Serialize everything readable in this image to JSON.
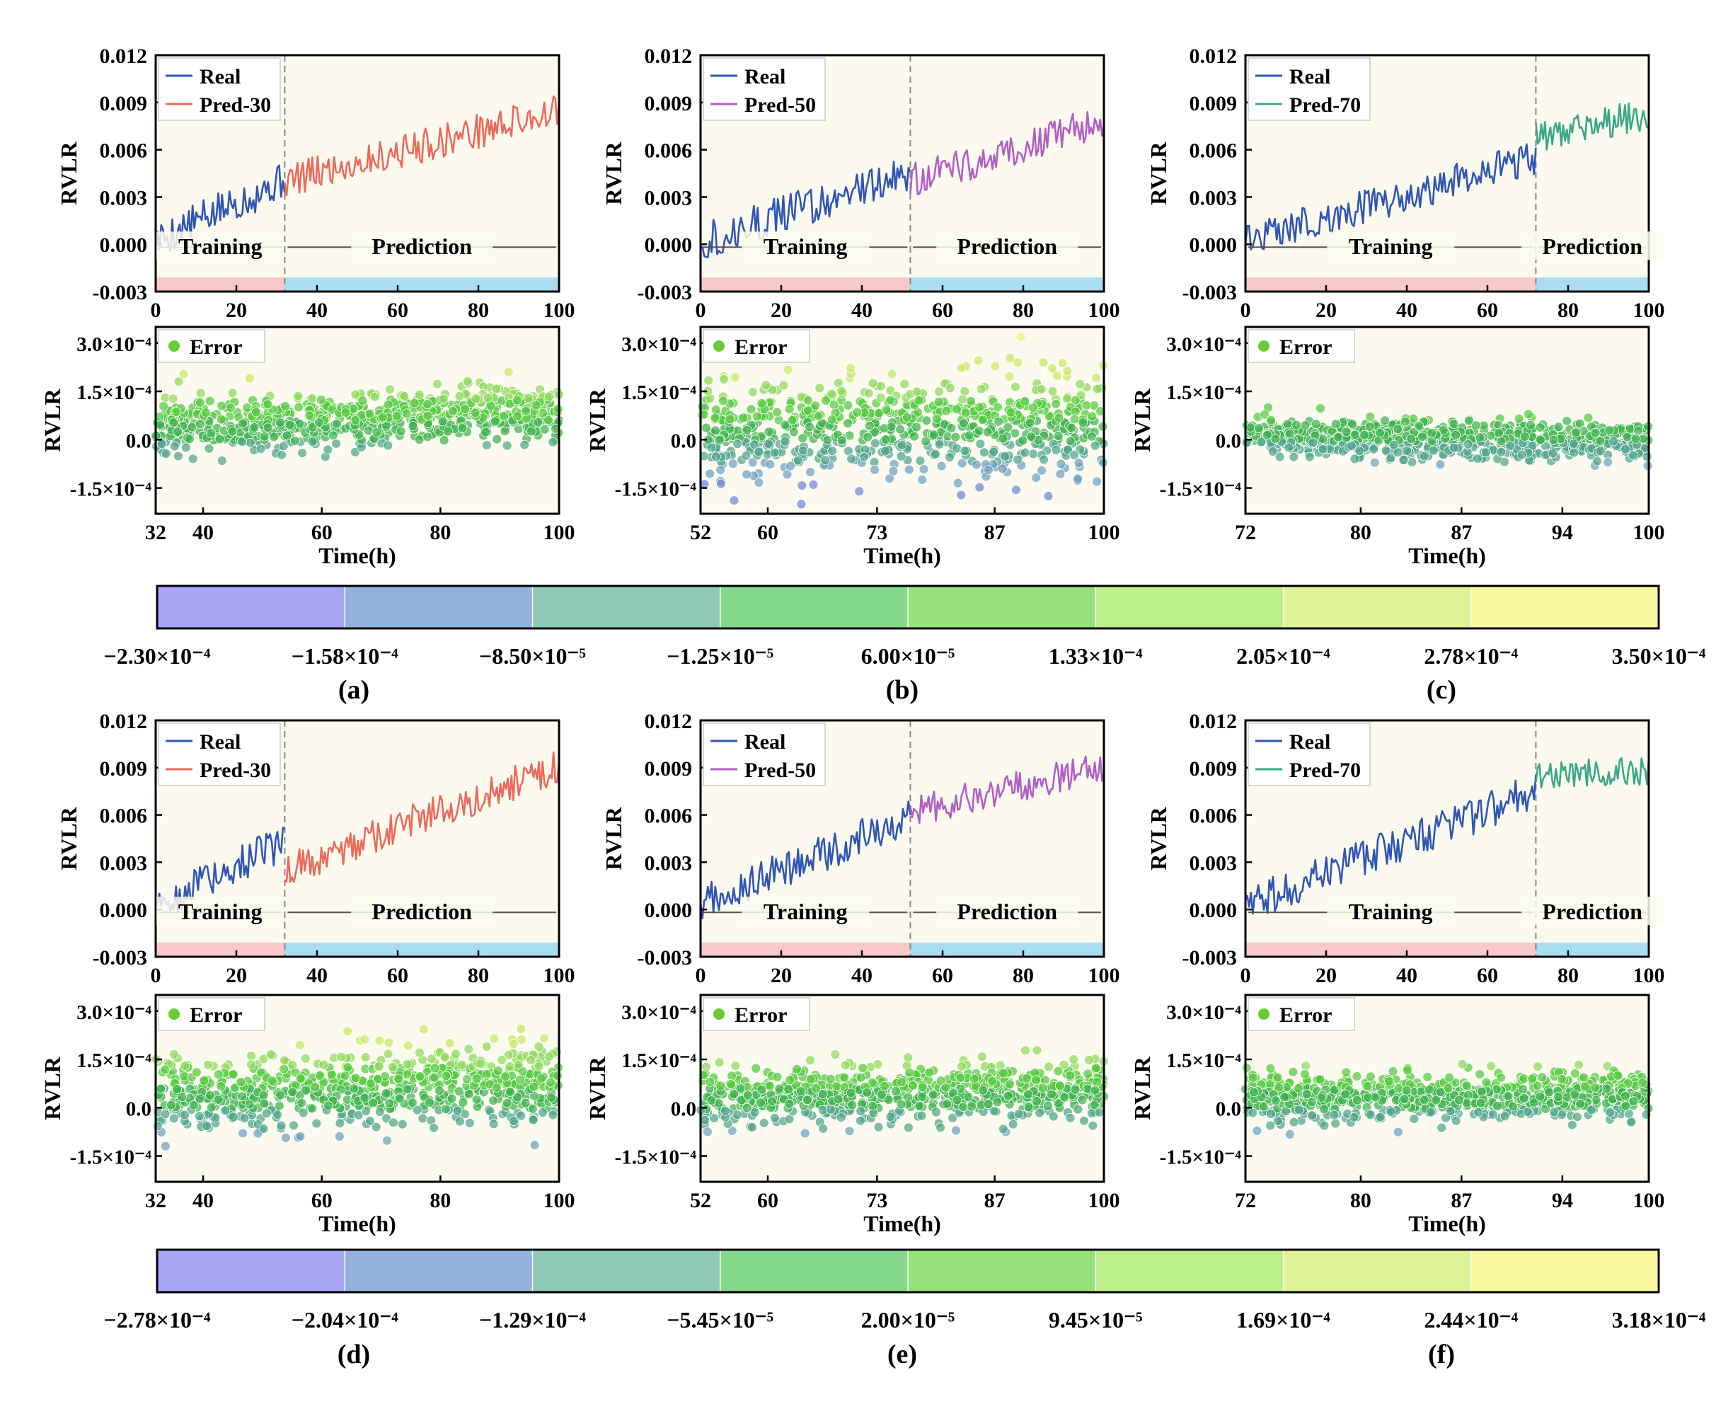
{
  "figure": {
    "panel_labels": [
      "(a)",
      "(b)",
      "(c)",
      "(d)",
      "(e)",
      "(f)"
    ],
    "colorbars": [
      {
        "colors": [
          "#a7a6f7",
          "#93b2dd",
          "#8fc9b8",
          "#84d88c",
          "#95e27a",
          "#bbef8a",
          "#dff396",
          "#fbf99f"
        ],
        "tick_labels": [
          "−2.30×10⁻⁴",
          "−1.58×10⁻⁴",
          "−8.50×10⁻⁵",
          "−1.25×10⁻⁵",
          "6.00×10⁻⁵",
          "1.33×10⁻⁴",
          "2.05×10⁻⁴",
          "2.78×10⁻⁴",
          "3.50×10⁻⁴"
        ]
      },
      {
        "colors": [
          "#a7a6f7",
          "#93b2dd",
          "#8fc9b8",
          "#84d88c",
          "#95e27a",
          "#bbef8a",
          "#dff396",
          "#fbf99f"
        ],
        "tick_labels": [
          "−2.78×10⁻⁴",
          "−2.04×10⁻⁴",
          "−1.29×10⁻⁴",
          "−5.45×10⁻⁵",
          "2.00×10⁻⁵",
          "9.45×10⁻⁵",
          "1.69×10⁻⁴",
          "2.44×10⁻⁴",
          "3.18×10⁻⁴"
        ]
      }
    ],
    "colors": {
      "real": "#2f55b5",
      "pred_30": "#ec6a5c",
      "pred_50": "#b15fc6",
      "pred_70": "#3aa88a",
      "plot_bg": "#fcfaee",
      "training_band": "#f8c9c9",
      "prediction_band": "#a9ddf2",
      "error_legend_dot": "#66cc33",
      "split_line": "#888888"
    }
  },
  "chart_data": [
    {
      "panel": "a",
      "type": "line",
      "ylabel": "RVLR",
      "xlim": [
        0,
        100
      ],
      "ylim": [
        -0.003,
        0.012
      ],
      "yticks": [
        "0.012",
        "0.009",
        "0.006",
        "0.003",
        "0.000",
        "-0.003"
      ],
      "xticks": [
        "0",
        "20",
        "40",
        "60",
        "80",
        "100"
      ],
      "split": 32,
      "legend": [
        "Real",
        "Pred-30"
      ],
      "training_label": "Training",
      "prediction_label": "Prediction",
      "real": {
        "start": 0,
        "end": 32,
        "v0": 0.0002,
        "v1": 0.0041,
        "noise": 0.0012
      },
      "pred": {
        "start": 32,
        "end": 100,
        "v0": 0.004,
        "v1": 0.0085,
        "noise": 0.0011
      }
    },
    {
      "panel": "a",
      "type": "scatter",
      "ylabel": "RVLR",
      "xlabel": "Time(h)",
      "xlim": [
        32,
        100
      ],
      "ylim": [
        -0.00023,
        0.00035
      ],
      "yticks": [
        "3.0×10⁻⁴",
        "1.5×10⁻⁴",
        "0.0",
        "-1.5×10⁻⁴"
      ],
      "xticks": [
        "32",
        "40",
        "60",
        "80",
        "100"
      ],
      "legend": "Error",
      "mean_start": 4e-05,
      "mean_end": 9e-05,
      "spread": 4.5e-05,
      "n": 700,
      "seed": 11
    },
    {
      "panel": "b",
      "type": "line",
      "ylabel": "RVLR",
      "xlim": [
        0,
        100
      ],
      "ylim": [
        -0.003,
        0.012
      ],
      "yticks": [
        "0.012",
        "0.009",
        "0.006",
        "0.003",
        "0.000",
        "-0.003"
      ],
      "xticks": [
        "0",
        "20",
        "40",
        "60",
        "80",
        "100"
      ],
      "split": 52,
      "legend": [
        "Real",
        "Pred-50"
      ],
      "training_label": "Training",
      "prediction_label": "Prediction",
      "real": {
        "start": 0,
        "end": 52,
        "v0": 0.0002,
        "v1": 0.0045,
        "noise": 0.0012
      },
      "pred": {
        "start": 52,
        "end": 100,
        "v0": 0.004,
        "v1": 0.0078,
        "noise": 0.0011
      }
    },
    {
      "panel": "b",
      "type": "scatter",
      "ylabel": "RVLR",
      "xlabel": "Time(h)",
      "xlim": [
        52,
        100
      ],
      "ylim": [
        -0.00023,
        0.00035
      ],
      "yticks": [
        "3.0×10⁻⁴",
        "1.5×10⁻⁴",
        "0.0",
        "-1.5×10⁻⁴"
      ],
      "xticks": [
        "52",
        "60",
        "73",
        "87",
        "100"
      ],
      "legend": "Error",
      "mean_start": 3e-05,
      "mean_end": 5e-05,
      "spread": 8e-05,
      "n": 700,
      "seed": 23
    },
    {
      "panel": "c",
      "type": "line",
      "ylabel": "RVLR",
      "xlim": [
        0,
        100
      ],
      "ylim": [
        -0.003,
        0.012
      ],
      "yticks": [
        "0.012",
        "0.009",
        "0.006",
        "0.003",
        "0.000",
        "-0.003"
      ],
      "xticks": [
        "0",
        "20",
        "40",
        "60",
        "80",
        "100"
      ],
      "split": 72,
      "legend": [
        "Real",
        "Pred-70"
      ],
      "training_label": "Training",
      "prediction_label": "Prediction",
      "real": {
        "start": 0,
        "end": 72,
        "v0": 0.0002,
        "v1": 0.0055,
        "noise": 0.0011
      },
      "pred": {
        "start": 72,
        "end": 100,
        "v0": 0.0068,
        "v1": 0.0083,
        "noise": 0.001
      }
    },
    {
      "panel": "c",
      "type": "scatter",
      "ylabel": "RVLR",
      "xlabel": "Time(h)",
      "xlim": [
        72,
        100
      ],
      "ylim": [
        -0.00023,
        0.00035
      ],
      "yticks": [
        "3.0×10⁻⁴",
        "1.5×10⁻⁴",
        "0.0",
        "-1.5×10⁻⁴"
      ],
      "xticks": [
        "72",
        "80",
        "87",
        "94",
        "100"
      ],
      "legend": "Error",
      "mean_start": 1e-05,
      "mean_end": -1e-05,
      "spread": 3e-05,
      "n": 700,
      "seed": 37
    },
    {
      "panel": "d",
      "type": "line",
      "ylabel": "RVLR",
      "xlim": [
        0,
        100
      ],
      "ylim": [
        -0.003,
        0.012
      ],
      "yticks": [
        "0.012",
        "0.009",
        "0.006",
        "0.003",
        "0.000",
        "-0.003"
      ],
      "xticks": [
        "0",
        "20",
        "40",
        "60",
        "80",
        "100"
      ],
      "split": 32,
      "legend": [
        "Real",
        "Pred-30"
      ],
      "training_label": "Training",
      "prediction_label": "Prediction",
      "real": {
        "start": 0,
        "end": 32,
        "v0": 0.0003,
        "v1": 0.0043,
        "noise": 0.0012
      },
      "pred": {
        "start": 32,
        "end": 100,
        "v0": 0.0025,
        "v1": 0.0091,
        "noise": 0.0011
      }
    },
    {
      "panel": "d",
      "type": "scatter",
      "ylabel": "RVLR",
      "xlabel": "Time(h)",
      "xlim": [
        32,
        100
      ],
      "ylim": [
        -0.00023,
        0.00035
      ],
      "yticks": [
        "3.0×10⁻⁴",
        "1.5×10⁻⁴",
        "0.0",
        "-1.5×10⁻⁴"
      ],
      "xticks": [
        "32",
        "40",
        "60",
        "80",
        "100"
      ],
      "legend": "Error",
      "mean_start": 3e-05,
      "mean_end": 8e-05,
      "spread": 6e-05,
      "n": 700,
      "seed": 41
    },
    {
      "panel": "e",
      "type": "line",
      "ylabel": "RVLR",
      "xlim": [
        0,
        100
      ],
      "ylim": [
        -0.003,
        0.012
      ],
      "yticks": [
        "0.012",
        "0.009",
        "0.006",
        "0.003",
        "0.000",
        "-0.003"
      ],
      "xticks": [
        "0",
        "20",
        "40",
        "60",
        "80",
        "100"
      ],
      "split": 52,
      "legend": [
        "Real",
        "Pred-50"
      ],
      "training_label": "Training",
      "prediction_label": "Prediction",
      "real": {
        "start": 0,
        "end": 52,
        "v0": 0.0003,
        "v1": 0.0058,
        "noise": 0.0012
      },
      "pred": {
        "start": 52,
        "end": 100,
        "v0": 0.0062,
        "v1": 0.0091,
        "noise": 0.001
      }
    },
    {
      "panel": "e",
      "type": "scatter",
      "ylabel": "RVLR",
      "xlabel": "Time(h)",
      "xlim": [
        52,
        100
      ],
      "ylim": [
        -0.00023,
        0.00035
      ],
      "yticks": [
        "3.0×10⁻⁴",
        "1.5×10⁻⁴",
        "0.0",
        "-1.5×10⁻⁴"
      ],
      "xticks": [
        "52",
        "60",
        "73",
        "87",
        "100"
      ],
      "legend": "Error",
      "mean_start": 3e-05,
      "mean_end": 6e-05,
      "spread": 4.5e-05,
      "n": 700,
      "seed": 53
    },
    {
      "panel": "f",
      "type": "line",
      "ylabel": "RVLR",
      "xlim": [
        0,
        100
      ],
      "ylim": [
        -0.003,
        0.012
      ],
      "yticks": [
        "0.012",
        "0.009",
        "0.006",
        "0.003",
        "0.000",
        "-0.003"
      ],
      "xticks": [
        "0",
        "20",
        "40",
        "60",
        "80",
        "100"
      ],
      "split": 72,
      "legend": [
        "Real",
        "Pred-70"
      ],
      "training_label": "Training",
      "prediction_label": "Prediction",
      "real": {
        "start": 0,
        "end": 72,
        "v0": 0.0003,
        "v1": 0.0075,
        "noise": 0.0012
      },
      "pred": {
        "start": 72,
        "end": 100,
        "v0": 0.0085,
        "v1": 0.0088,
        "noise": 0.0009
      }
    },
    {
      "panel": "f",
      "type": "scatter",
      "ylabel": "RVLR",
      "xlabel": "Time(h)",
      "xlim": [
        72,
        100
      ],
      "ylim": [
        -0.00023,
        0.00035
      ],
      "yticks": [
        "3.0×10⁻⁴",
        "1.5×10⁻⁴",
        "0.0",
        "-1.5×10⁻⁴"
      ],
      "xticks": [
        "72",
        "80",
        "87",
        "94",
        "100"
      ],
      "legend": "Error",
      "mean_start": 3e-05,
      "mean_end": 4e-05,
      "spread": 3.5e-05,
      "n": 700,
      "seed": 67
    }
  ]
}
